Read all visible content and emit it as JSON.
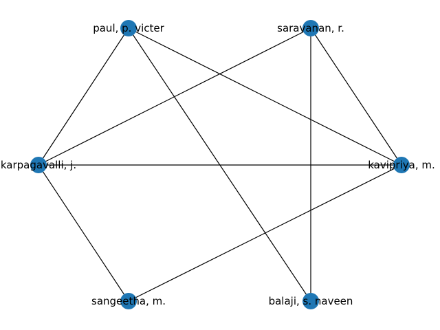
{
  "graph": {
    "node_color": "#1f77b4",
    "edge_color": "#000000",
    "nodes": [
      {
        "id": "paul",
        "label": "paul, p. victer"
      },
      {
        "id": "saravanan",
        "label": "saravanan, r."
      },
      {
        "id": "karpagavalli",
        "label": "karpagavalli, j."
      },
      {
        "id": "kavipriya",
        "label": "kavipriya, m."
      },
      {
        "id": "sangeetha",
        "label": "sangeetha, m."
      },
      {
        "id": "balaji",
        "label": "balaji, s. naveen"
      }
    ],
    "edges": [
      [
        "paul",
        "karpagavalli"
      ],
      [
        "paul",
        "kavipriya"
      ],
      [
        "paul",
        "balaji"
      ],
      [
        "saravanan",
        "karpagavalli"
      ],
      [
        "saravanan",
        "kavipriya"
      ],
      [
        "saravanan",
        "balaji"
      ],
      [
        "karpagavalli",
        "kavipriya"
      ],
      [
        "karpagavalli",
        "sangeetha"
      ],
      [
        "kavipriya",
        "sangeetha"
      ]
    ]
  }
}
